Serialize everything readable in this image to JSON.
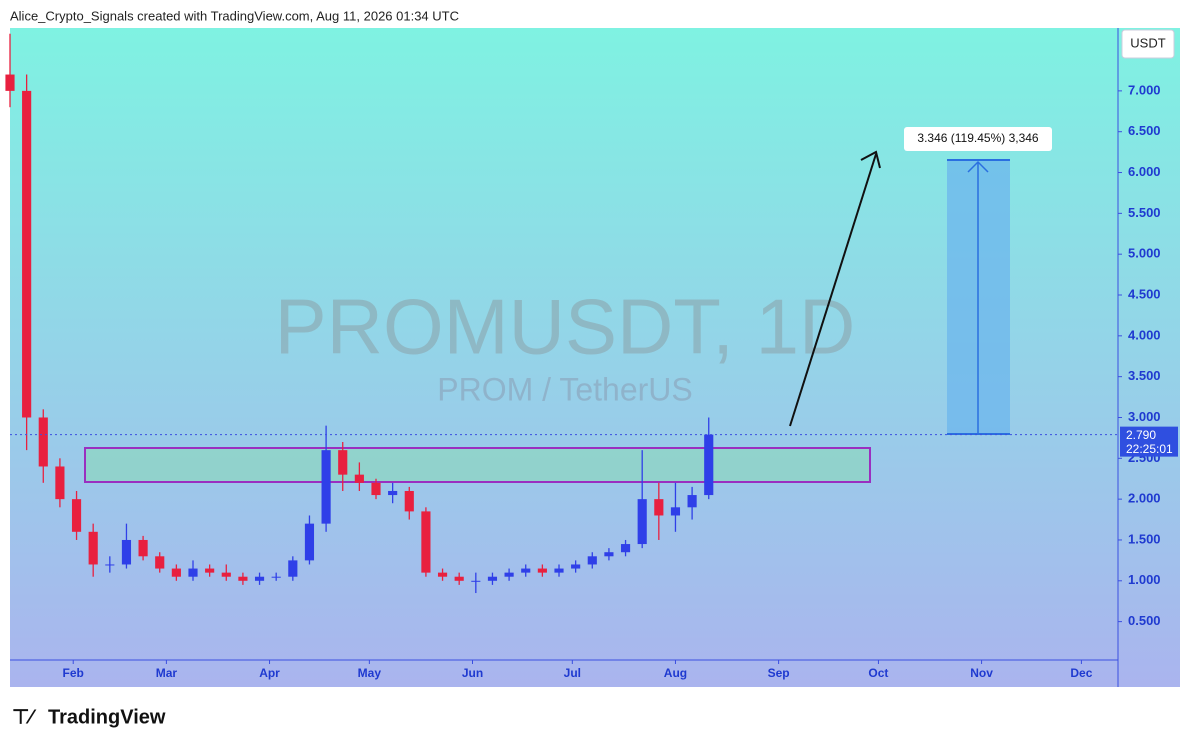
{
  "header": "Alice_Crypto_Signals created with TradingView.com, Aug 11, 2026 01:34 UTC",
  "footer": "TradingView",
  "chart_data": {
    "type": "candlestick",
    "watermark_title": "PROMUSDT, 1D",
    "watermark_subtitle": "PROM / TetherUS",
    "currency": "USDT",
    "measure_label": "3.346 (119.45%) 3,346",
    "countdown": "22:25:01",
    "price_line": {
      "value": 2.79,
      "label": "2.790"
    },
    "up_color": "#2f3fe8",
    "down_color": "#e8203f",
    "x": [
      0,
      5,
      10,
      15,
      20,
      25,
      30,
      35,
      40,
      45,
      50,
      55,
      60,
      65,
      70,
      75,
      80,
      85,
      90,
      95,
      100,
      105,
      110,
      115,
      120,
      125,
      130,
      135,
      140,
      145,
      150,
      155,
      160,
      165,
      170,
      175,
      180,
      185,
      190,
      195,
      200,
      205,
      210
    ],
    "open": [
      7.2,
      7.0,
      3.0,
      2.4,
      2.0,
      1.6,
      1.2,
      1.2,
      1.5,
      1.3,
      1.15,
      1.05,
      1.15,
      1.1,
      1.05,
      1.0,
      1.05,
      1.05,
      1.25,
      1.7,
      2.6,
      2.3,
      2.2,
      2.05,
      2.1,
      1.85,
      1.1,
      1.05,
      1.0,
      1.0,
      1.05,
      1.1,
      1.15,
      1.1,
      1.15,
      1.2,
      1.3,
      1.35,
      1.45,
      2.0,
      1.8,
      1.9,
      2.05
    ],
    "high": [
      7.7,
      7.2,
      3.1,
      2.5,
      2.1,
      1.7,
      1.3,
      1.7,
      1.55,
      1.35,
      1.2,
      1.25,
      1.2,
      1.2,
      1.1,
      1.1,
      1.1,
      1.3,
      1.8,
      2.9,
      2.7,
      2.45,
      2.25,
      2.2,
      2.15,
      1.9,
      1.15,
      1.1,
      1.1,
      1.1,
      1.15,
      1.2,
      1.2,
      1.2,
      1.25,
      1.35,
      1.4,
      1.5,
      2.6,
      2.2,
      2.2,
      2.15,
      3.0
    ],
    "low": [
      6.8,
      2.6,
      2.2,
      1.9,
      1.5,
      1.05,
      1.1,
      1.15,
      1.25,
      1.1,
      1.0,
      1.0,
      1.05,
      1.0,
      0.95,
      0.95,
      1.0,
      1.0,
      1.2,
      1.6,
      2.1,
      2.1,
      2.0,
      1.95,
      1.75,
      1.05,
      1.0,
      0.95,
      0.85,
      0.95,
      1.0,
      1.05,
      1.05,
      1.05,
      1.1,
      1.15,
      1.25,
      1.3,
      1.4,
      1.5,
      1.6,
      1.75,
      2.0
    ],
    "close": [
      7.0,
      3.0,
      2.4,
      2.0,
      1.6,
      1.2,
      1.2,
      1.5,
      1.3,
      1.15,
      1.05,
      1.15,
      1.1,
      1.05,
      1.0,
      1.05,
      1.05,
      1.25,
      1.7,
      2.6,
      2.3,
      2.2,
      2.05,
      2.1,
      1.85,
      1.1,
      1.05,
      1.0,
      1.0,
      1.05,
      1.1,
      1.15,
      1.1,
      1.15,
      1.2,
      1.3,
      1.35,
      1.45,
      2.0,
      1.8,
      1.9,
      2.05,
      2.79
    ],
    "xlim": [
      0,
      333
    ],
    "xticks": [
      {
        "value": 19,
        "label": "Feb"
      },
      {
        "value": 47,
        "label": "Mar"
      },
      {
        "value": 78,
        "label": "Apr"
      },
      {
        "value": 108,
        "label": "May"
      },
      {
        "value": 139,
        "label": "Jun"
      },
      {
        "value": 169,
        "label": "Jul"
      },
      {
        "value": 200,
        "label": "Aug"
      },
      {
        "value": 231,
        "label": "Sep"
      },
      {
        "value": 261,
        "label": "Oct"
      },
      {
        "value": 292,
        "label": "Nov"
      },
      {
        "value": 322,
        "label": "Dec"
      }
    ],
    "ylim": [
      0.03,
      7.77
    ],
    "yticks": [
      {
        "value": 0.5,
        "label": "0.500"
      },
      {
        "value": 1,
        "label": "1.000"
      },
      {
        "value": 1.5,
        "label": "1.500"
      },
      {
        "value": 2,
        "label": "2.000"
      },
      {
        "value": 2.5,
        "label": "2.500"
      },
      {
        "value": 3,
        "label": "3.000"
      },
      {
        "value": 3.5,
        "label": "3.500"
      },
      {
        "value": 4,
        "label": "4.000"
      },
      {
        "value": 4.5,
        "label": "4.500"
      },
      {
        "value": 5,
        "label": "5.000"
      },
      {
        "value": 5.5,
        "label": "5.500"
      },
      {
        "value": 6,
        "label": "6.000"
      },
      {
        "value": 6.5,
        "label": "6.500"
      },
      {
        "value": 7,
        "label": "7.000"
      }
    ]
  }
}
